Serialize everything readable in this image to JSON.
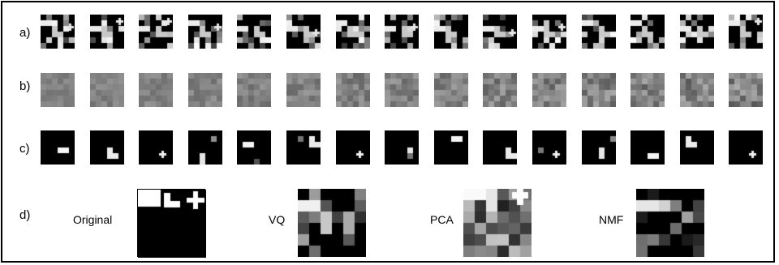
{
  "labels": {
    "a": "a)",
    "b": "b)",
    "c": "c)",
    "d": "d)"
  },
  "captions": {
    "original": "Original",
    "vq": "VQ",
    "pca": "PCA",
    "nmf": "NMF"
  },
  "tile_count_per_row": 15
}
